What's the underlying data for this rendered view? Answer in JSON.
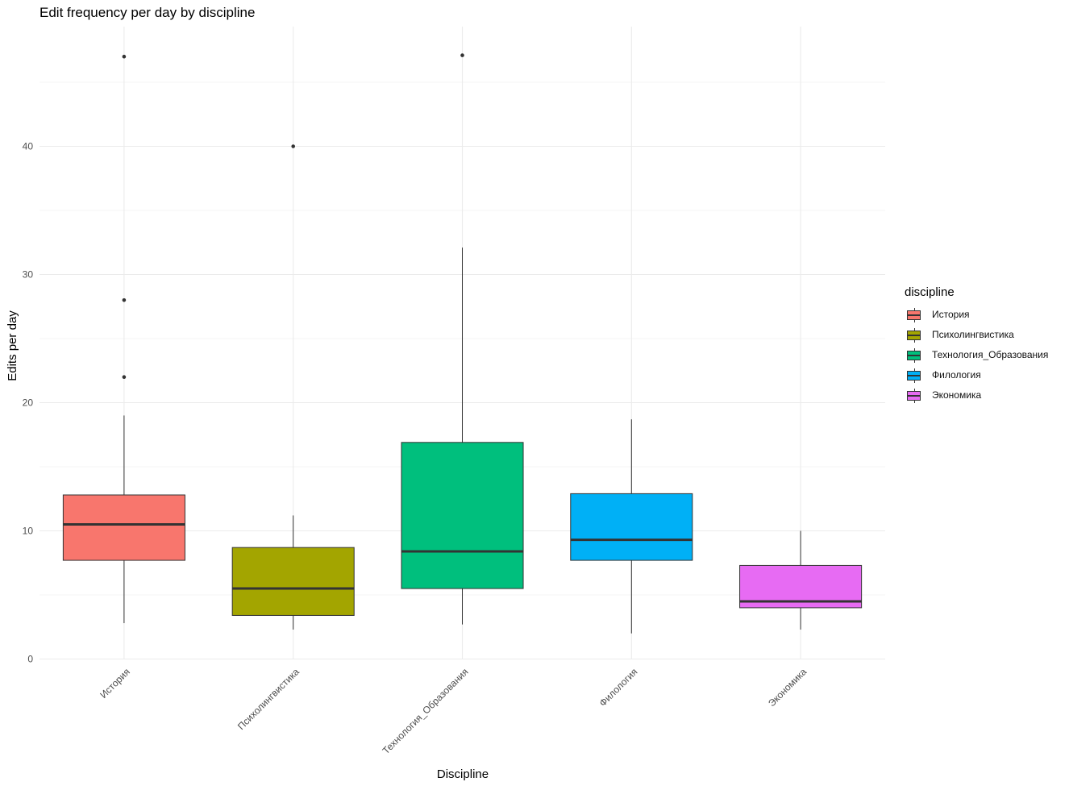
{
  "chart_data": {
    "type": "boxplot",
    "title": "Edit frequency per day by discipline",
    "xlabel": "Discipline",
    "ylabel": "Edits per day",
    "ylim": [
      0,
      49
    ],
    "y_ticks": [
      0,
      10,
      20,
      30,
      40
    ],
    "grid": true,
    "legend": {
      "title": "discipline",
      "position": "right"
    },
    "categories": [
      "История",
      "Психолингвистика",
      "Технология_Образования",
      "Филология",
      "Экономика"
    ],
    "colors": [
      "#F8766D",
      "#A3A500",
      "#00BF7D",
      "#00B0F6",
      "#E76BF3"
    ],
    "series": [
      {
        "category": "История",
        "min": 2.8,
        "q1": 7.7,
        "median": 10.5,
        "q3": 12.8,
        "max": 19.0,
        "outliers": [
          22,
          28,
          47
        ]
      },
      {
        "category": "Психолингвистика",
        "min": 2.3,
        "q1": 3.4,
        "median": 5.5,
        "q3": 8.7,
        "max": 11.2,
        "outliers": [
          40
        ]
      },
      {
        "category": "Технология_Образования",
        "min": 2.7,
        "q1": 5.5,
        "median": 8.4,
        "q3": 16.9,
        "max": 32.1,
        "outliers": [
          47.1
        ]
      },
      {
        "category": "Филология",
        "min": 2.0,
        "q1": 7.7,
        "median": 9.3,
        "q3": 12.9,
        "max": 18.7,
        "outliers": []
      },
      {
        "category": "Экономика",
        "min": 2.3,
        "q1": 4.0,
        "median": 4.5,
        "q3": 7.3,
        "max": 10.0,
        "outliers": []
      }
    ]
  }
}
